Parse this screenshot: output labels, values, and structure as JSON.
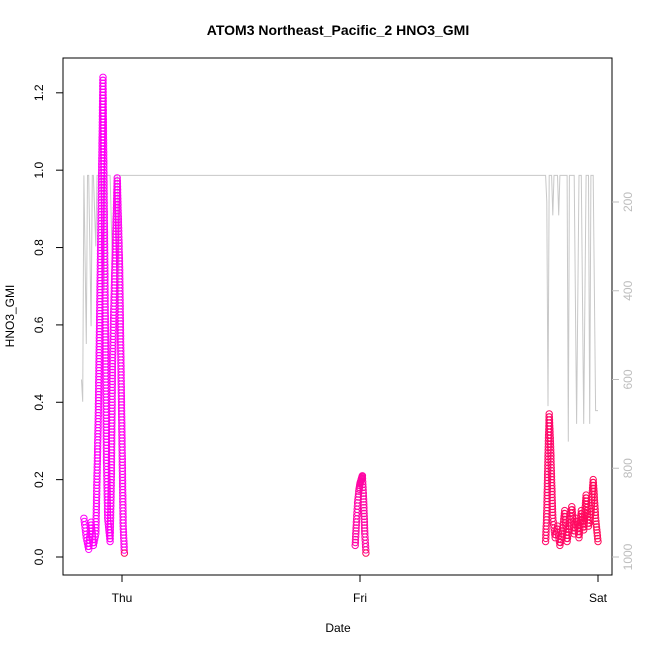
{
  "chart_data": {
    "type": "scatter",
    "title": "ATOM3 Northeast_Pacific_2 HNO3_GMI",
    "xlabel": "Date",
    "ylabel": "HNO3_GMI",
    "x_ticks": [
      "Thu",
      "Fri",
      "Sat"
    ],
    "x_range_days": [
      -0.2,
      2.0
    ],
    "ylim": [
      0,
      1.29
    ],
    "y_ticks": [
      0.0,
      0.2,
      0.4,
      0.6,
      0.8,
      1.0,
      1.2
    ],
    "y_tick_labels": [
      "0.0",
      "0.2",
      "0.4",
      "0.6",
      "0.8",
      "1.0",
      "1.2"
    ],
    "right_axis": {
      "ticks": [
        200,
        400,
        600,
        800,
        1000
      ],
      "tick_labels": [
        "200",
        "400",
        "600",
        "800",
        "1000"
      ],
      "range": [
        1013,
        140
      ],
      "color": "#bdbdbd"
    },
    "colors": {
      "start": "#ff00ff",
      "end": "#ff0a5a",
      "pressure_line": "#c8c8c8"
    },
    "segments": [
      {
        "x": [
          -0.16,
          -0.15,
          -0.14,
          -0.13,
          -0.12,
          -0.11,
          -0.1,
          -0.09,
          -0.08,
          -0.07,
          -0.065,
          -0.06,
          -0.05,
          -0.045,
          -0.04,
          -0.03,
          -0.02,
          -0.01,
          0.0,
          0.005,
          0.01
        ],
        "y": [
          0.1,
          0.05,
          0.02,
          0.09,
          0.03,
          0.06,
          0.35,
          0.8,
          1.24,
          0.6,
          0.25,
          0.1,
          0.04,
          0.2,
          0.5,
          0.75,
          0.98,
          0.75,
          0.3,
          0.08,
          0.01
        ]
      },
      {
        "x": [
          0.98,
          0.985,
          0.99,
          0.995,
          1.0,
          1.005,
          1.01,
          1.015,
          1.02,
          1.025
        ],
        "y": [
          0.03,
          0.09,
          0.14,
          0.17,
          0.19,
          0.2,
          0.21,
          0.15,
          0.06,
          0.01
        ]
      },
      {
        "x": [
          1.78,
          1.785,
          1.79,
          1.795,
          1.8,
          1.81,
          1.82,
          1.83,
          1.84,
          1.85,
          1.86,
          1.87,
          1.88,
          1.89,
          1.9,
          1.91,
          1.92,
          1.93,
          1.94,
          1.95,
          1.96,
          1.97,
          1.98,
          1.99,
          2.0
        ],
        "y": [
          0.04,
          0.12,
          0.26,
          0.37,
          0.3,
          0.1,
          0.05,
          0.08,
          0.03,
          0.06,
          0.12,
          0.04,
          0.08,
          0.13,
          0.06,
          0.1,
          0.05,
          0.12,
          0.07,
          0.16,
          0.08,
          0.11,
          0.2,
          0.1,
          0.04
        ]
      }
    ],
    "pressure_path": {
      "x": [
        -0.17,
        -0.165,
        -0.16,
        -0.15,
        -0.145,
        -0.14,
        -0.13,
        -0.125,
        -0.12,
        -0.11,
        -0.105,
        -0.1,
        -0.09,
        -0.08,
        -0.075,
        -0.07,
        -0.06,
        -0.05,
        -0.04,
        -0.03,
        -0.02,
        -0.015,
        -0.01,
        0.0,
        0.98,
        0.985,
        0.99,
        0.995,
        1.0,
        1.005,
        1.01,
        1.015,
        1.02,
        1.025,
        1.03,
        1.78,
        1.785,
        1.79,
        1.795,
        1.8,
        1.805,
        1.81,
        1.815,
        1.82,
        1.83,
        1.835,
        1.84,
        1.85,
        1.86,
        1.87,
        1.875,
        1.88,
        1.89,
        1.9,
        1.91,
        1.92,
        1.925,
        1.93,
        1.94,
        1.95,
        1.96,
        1.965,
        1.97,
        1.98,
        1.99,
        2.0
      ],
      "p": [
        600,
        650,
        140,
        520,
        140,
        140,
        480,
        140,
        140,
        300,
        140,
        140,
        140,
        140,
        400,
        140,
        140,
        140,
        350,
        140,
        140,
        450,
        140,
        140,
        140,
        140,
        140,
        140,
        140,
        140,
        140,
        140,
        140,
        140,
        140,
        140,
        200,
        660,
        140,
        140,
        140,
        230,
        140,
        140,
        140,
        230,
        140,
        140,
        140,
        140,
        740,
        140,
        140,
        140,
        700,
        140,
        140,
        140,
        700,
        140,
        140,
        700,
        140,
        140,
        670,
        670
      ]
    }
  }
}
